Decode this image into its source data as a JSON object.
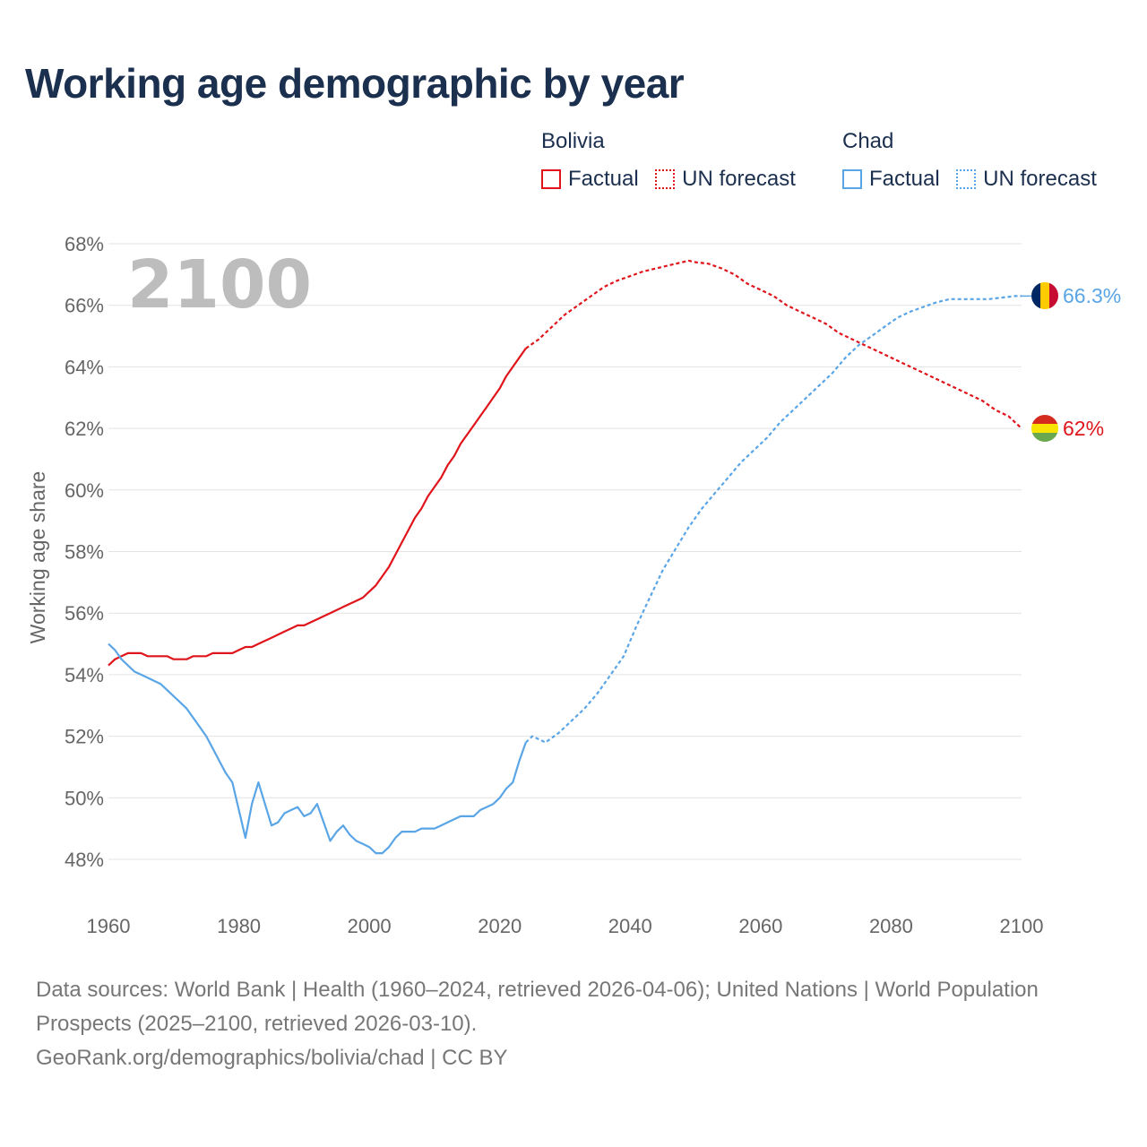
{
  "title": "Working age demographic by year",
  "legend": {
    "groups": [
      {
        "name": "Bolivia",
        "color": "#e0151b",
        "factual_label": "Factual",
        "forecast_label": "UN forecast"
      },
      {
        "name": "Chad",
        "color": "#5aa5e6",
        "factual_label": "Factual",
        "forecast_label": "UN forecast"
      }
    ]
  },
  "year_overlay": "2100",
  "footer": {
    "sources": "Data sources: World Bank | Health (1960–2024, retrieved 2026-04-06); United Nations | World Population Prospects (2025–2100, retrieved 2026-03-10).",
    "credit": "GeoRank.org/demographics/bolivia/chad | CC BY"
  },
  "chart_data": {
    "type": "line",
    "title": "Working age demographic by year",
    "xlabel": "",
    "ylabel": "Working age share",
    "xlim": [
      1960,
      2100
    ],
    "ylim": [
      47,
      68
    ],
    "x_ticks": [
      1960,
      1980,
      2000,
      2020,
      2040,
      2060,
      2080,
      2100
    ],
    "y_ticks": [
      48,
      50,
      52,
      54,
      56,
      58,
      60,
      62,
      64,
      66,
      68
    ],
    "y_tick_suffix": "%",
    "grid": true,
    "legend_position": "top-right",
    "series": [
      {
        "name": "Bolivia",
        "segment": "Factual",
        "color": "#e0151b",
        "dashed": false,
        "x": [
          1960,
          1961,
          1962,
          1963,
          1964,
          1965,
          1966,
          1967,
          1968,
          1969,
          1970,
          1971,
          1972,
          1973,
          1974,
          1975,
          1976,
          1977,
          1978,
          1979,
          1980,
          1981,
          1982,
          1983,
          1984,
          1985,
          1986,
          1987,
          1988,
          1989,
          1990,
          1991,
          1992,
          1993,
          1994,
          1995,
          1996,
          1997,
          1998,
          1999,
          2000,
          2001,
          2002,
          2003,
          2004,
          2005,
          2006,
          2007,
          2008,
          2009,
          2010,
          2011,
          2012,
          2013,
          2014,
          2015,
          2016,
          2017,
          2018,
          2019,
          2020,
          2021,
          2022,
          2023,
          2024
        ],
        "y": [
          54.3,
          54.5,
          54.6,
          54.7,
          54.7,
          54.7,
          54.6,
          54.6,
          54.6,
          54.6,
          54.5,
          54.5,
          54.5,
          54.6,
          54.6,
          54.6,
          54.7,
          54.7,
          54.7,
          54.7,
          54.8,
          54.9,
          54.9,
          55.0,
          55.1,
          55.2,
          55.3,
          55.4,
          55.5,
          55.6,
          55.6,
          55.7,
          55.8,
          55.9,
          56.0,
          56.1,
          56.2,
          56.3,
          56.4,
          56.5,
          56.7,
          56.9,
          57.2,
          57.5,
          57.9,
          58.3,
          58.7,
          59.1,
          59.4,
          59.8,
          60.1,
          60.4,
          60.8,
          61.1,
          61.5,
          61.8,
          62.1,
          62.4,
          62.7,
          63.0,
          63.3,
          63.7,
          64.0,
          64.3,
          64.6
        ]
      },
      {
        "name": "Bolivia",
        "segment": "UN forecast",
        "color": "#e0151b",
        "dashed": true,
        "x": [
          2024,
          2026,
          2028,
          2030,
          2032,
          2034,
          2036,
          2038,
          2040,
          2042,
          2044,
          2046,
          2048,
          2049,
          2050,
          2052,
          2054,
          2056,
          2058,
          2060,
          2062,
          2064,
          2066,
          2068,
          2070,
          2072,
          2074,
          2076,
          2078,
          2080,
          2082,
          2084,
          2086,
          2088,
          2090,
          2092,
          2094,
          2096,
          2098,
          2100
        ],
        "y": [
          64.6,
          64.9,
          65.3,
          65.7,
          66.0,
          66.3,
          66.6,
          66.8,
          66.95,
          67.1,
          67.2,
          67.3,
          67.4,
          67.45,
          67.4,
          67.35,
          67.2,
          67.0,
          66.7,
          66.5,
          66.3,
          66.0,
          65.8,
          65.6,
          65.4,
          65.1,
          64.9,
          64.7,
          64.5,
          64.3,
          64.1,
          63.9,
          63.7,
          63.5,
          63.3,
          63.1,
          62.9,
          62.6,
          62.4,
          62.0
        ]
      },
      {
        "name": "Chad",
        "segment": "Factual",
        "color": "#5aa5e6",
        "dashed": false,
        "x": [
          1960,
          1961,
          1962,
          1963,
          1964,
          1965,
          1966,
          1967,
          1968,
          1969,
          1970,
          1971,
          1972,
          1973,
          1974,
          1975,
          1976,
          1977,
          1978,
          1979,
          1980,
          1981,
          1982,
          1983,
          1984,
          1985,
          1986,
          1987,
          1988,
          1989,
          1990,
          1991,
          1992,
          1993,
          1994,
          1995,
          1996,
          1997,
          1998,
          1999,
          2000,
          2001,
          2002,
          2003,
          2004,
          2005,
          2006,
          2007,
          2008,
          2009,
          2010,
          2011,
          2012,
          2013,
          2014,
          2015,
          2016,
          2017,
          2018,
          2019,
          2020,
          2021,
          2022,
          2023,
          2024
        ],
        "y": [
          55.0,
          54.8,
          54.5,
          54.3,
          54.1,
          54.0,
          53.9,
          53.8,
          53.7,
          53.5,
          53.3,
          53.1,
          52.9,
          52.6,
          52.3,
          52.0,
          51.6,
          51.2,
          50.8,
          50.5,
          49.6,
          48.7,
          49.8,
          50.5,
          49.8,
          49.1,
          49.2,
          49.5,
          49.6,
          49.7,
          49.4,
          49.5,
          49.8,
          49.2,
          48.6,
          48.9,
          49.1,
          48.8,
          48.6,
          48.5,
          48.4,
          48.2,
          48.2,
          48.4,
          48.7,
          48.9,
          48.9,
          48.9,
          49.0,
          49.0,
          49.0,
          49.1,
          49.2,
          49.3,
          49.4,
          49.4,
          49.4,
          49.6,
          49.7,
          49.8,
          50.0,
          50.3,
          50.5,
          51.2,
          51.8
        ]
      },
      {
        "name": "Chad",
        "segment": "UN forecast",
        "color": "#5aa5e6",
        "dashed": true,
        "x": [
          2024,
          2025,
          2027,
          2029,
          2031,
          2033,
          2035,
          2037,
          2039,
          2041,
          2043,
          2045,
          2047,
          2049,
          2051,
          2053,
          2055,
          2057,
          2059,
          2061,
          2063,
          2065,
          2067,
          2069,
          2071,
          2073,
          2075,
          2077,
          2079,
          2081,
          2083,
          2085,
          2087,
          2089,
          2091,
          2093,
          2095,
          2097,
          2099,
          2100
        ],
        "y": [
          51.8,
          52.0,
          51.8,
          52.1,
          52.5,
          52.9,
          53.4,
          54.0,
          54.6,
          55.6,
          56.5,
          57.4,
          58.1,
          58.8,
          59.4,
          59.9,
          60.4,
          60.9,
          61.3,
          61.7,
          62.2,
          62.6,
          63.0,
          63.4,
          63.8,
          64.3,
          64.7,
          65.0,
          65.3,
          65.6,
          65.8,
          65.95,
          66.1,
          66.2,
          66.2,
          66.2,
          66.2,
          66.25,
          66.3,
          66.3
        ]
      }
    ],
    "end_labels": [
      {
        "country": "Chad",
        "text": "66.3%",
        "value": 66.3,
        "color": "#5aa5e6"
      },
      {
        "country": "Bolivia",
        "text": "62%",
        "value": 62.0,
        "color": "#e0151b"
      }
    ]
  }
}
